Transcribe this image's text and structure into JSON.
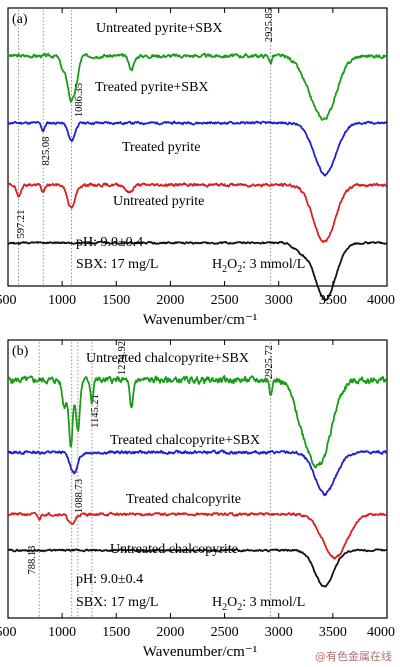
{
  "chart_data": [
    {
      "type": "line",
      "panel_label": "(a)",
      "xlabel": "Wavenumber/cm⁻¹",
      "xlim": [
        500,
        4000
      ],
      "x_ticks": [
        "500",
        "1000",
        "1500",
        "2000",
        "2500",
        "3000",
        "3500",
        "4000"
      ],
      "colors": {
        "green": "#1a9b1a",
        "blue": "#1f1fcc",
        "red": "#d92020",
        "black": "#111111"
      },
      "series": [
        {
          "name": "Untreated pyrite+SBX",
          "color": "green",
          "baseline": 0.83,
          "noise": 0.012,
          "seed": 3,
          "features": [
            [
              1080,
              -0.16,
              30
            ],
            [
              1130,
              -0.08,
              25
            ],
            [
              1010,
              -0.05,
              25
            ],
            [
              1640,
              -0.05,
              25
            ],
            [
              2925,
              -0.03,
              10
            ],
            [
              3420,
              -0.24,
              110
            ],
            [
              3250,
              -0.04,
              80
            ]
          ]
        },
        {
          "name": "Treated pyrite+SBX",
          "color": "blue",
          "baseline": 0.57,
          "noise": 0.008,
          "seed": 11,
          "features": [
            [
              1086,
              -0.07,
              30
            ],
            [
              825,
              -0.03,
              15
            ],
            [
              3430,
              -0.2,
              100
            ]
          ]
        },
        {
          "name": "Treated pyrite",
          "color": "red",
          "baseline": 0.33,
          "noise": 0.01,
          "seed": 19,
          "features": [
            [
              597,
              -0.05,
              18
            ],
            [
              825,
              -0.03,
              15
            ],
            [
              1086,
              -0.09,
              35
            ],
            [
              1620,
              -0.03,
              30
            ],
            [
              3420,
              -0.22,
              100
            ]
          ]
        },
        {
          "name": "Untreated pyrite",
          "color": "black",
          "baseline": 0.105,
          "noise": 0.006,
          "seed": 27,
          "features": [
            [
              3430,
              -0.22,
              95
            ],
            [
              3200,
              -0.03,
              60
            ]
          ]
        }
      ],
      "peak_lines": [
        {
          "x": 597.21,
          "label": "597.21"
        },
        {
          "x": 825.08,
          "label": "825.08"
        },
        {
          "x": 1086.35,
          "label": "1086.35"
        },
        {
          "x": 2925.85,
          "label": "2925.85"
        }
      ],
      "conditions": {
        "ph": "pH: 9.0±0.4",
        "sbx": "SBX: 17 mg/L",
        "h2o2_prefix": "H",
        "h2o2_sub": "2",
        "h2o2_mid": "O",
        "h2o2_sub2": "2",
        "h2o2_value": ": 3 mmol/L"
      }
    },
    {
      "type": "line",
      "panel_label": "(b)",
      "xlabel": "Wavenumber/cm⁻¹",
      "xlim": [
        500,
        4000
      ],
      "x_ticks": [
        "500",
        "1000",
        "1500",
        "2000",
        "2500",
        "3000",
        "3500",
        "4000"
      ],
      "colors": {
        "green": "#1a9b1a",
        "blue": "#1f1fcc",
        "red": "#d92020",
        "black": "#111111"
      },
      "series": [
        {
          "name": "Untreated chalcopyrite+SBX",
          "color": "green",
          "baseline": 0.86,
          "noise": 0.022,
          "seed": 5,
          "features": [
            [
              1080,
              -0.25,
              18
            ],
            [
              1145,
              -0.2,
              18
            ],
            [
              1020,
              -0.1,
              20
            ],
            [
              1275,
              -0.08,
              12
            ],
            [
              1640,
              -0.12,
              15
            ],
            [
              2925,
              -0.05,
              10
            ],
            [
              3370,
              -0.33,
              110
            ],
            [
              3200,
              -0.08,
              70
            ]
          ]
        },
        {
          "name": "Treated chalcopyrite+SBX",
          "color": "blue",
          "baseline": 0.58,
          "noise": 0.01,
          "seed": 13,
          "features": [
            [
              1110,
              -0.08,
              35
            ],
            [
              3430,
              -0.16,
              95
            ]
          ]
        },
        {
          "name": "Treated chalcopyrite",
          "color": "red",
          "baseline": 0.34,
          "noise": 0.009,
          "seed": 21,
          "features": [
            [
              788,
              -0.02,
              12
            ],
            [
              1088,
              -0.04,
              30
            ],
            [
              3520,
              -0.17,
              110
            ]
          ]
        },
        {
          "name": "Untreated chalcopyrite",
          "color": "black",
          "baseline": 0.2,
          "noise": 0.006,
          "seed": 29,
          "features": [
            [
              3420,
              -0.14,
              85
            ]
          ]
        }
      ],
      "peak_lines": [
        {
          "x": 788.13,
          "label": "788.13"
        },
        {
          "x": 1088.73,
          "label": "1088.73"
        },
        {
          "x": 1145.21,
          "label": "1145.21"
        },
        {
          "x": 1274.92,
          "label": "1274.92"
        },
        {
          "x": 2925.72,
          "label": "2925.72"
        }
      ],
      "conditions": {
        "ph": "pH: 9.0±0.4",
        "sbx": "SBX: 17 mg/L",
        "h2o2_prefix": "H",
        "h2o2_sub": "2",
        "h2o2_mid": "O",
        "h2o2_sub2": "2",
        "h2o2_value": ": 3 mmol/L"
      }
    }
  ],
  "watermark": "@有色金属在线"
}
